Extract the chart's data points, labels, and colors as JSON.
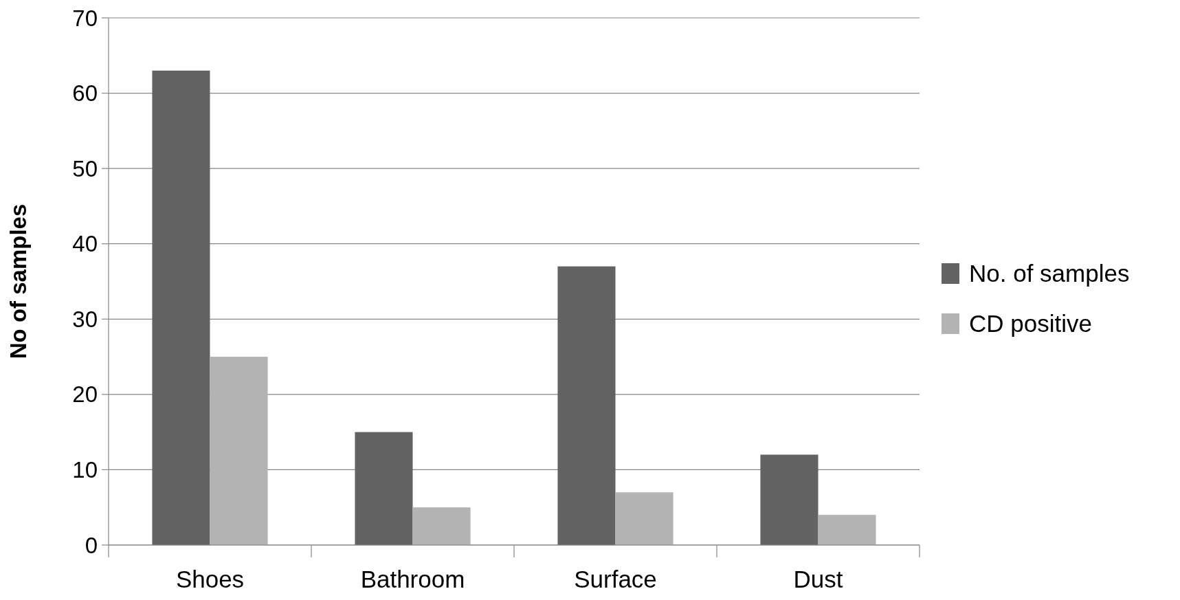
{
  "chart_data": {
    "type": "bar",
    "ylabel": "No of samples",
    "categories": [
      "Shoes",
      "Bathroom",
      "Surface",
      "Dust"
    ],
    "series": [
      {
        "name": "No. of samples",
        "color": "#636363",
        "values": [
          63,
          15,
          37,
          12
        ]
      },
      {
        "name": "CD positive",
        "color": "#b3b3b3",
        "values": [
          25,
          5,
          7,
          4
        ]
      }
    ],
    "ylim": [
      0,
      70
    ],
    "yticks": [
      0,
      10,
      20,
      30,
      40,
      50,
      60,
      70
    ],
    "grid": "y",
    "legend": "right"
  }
}
